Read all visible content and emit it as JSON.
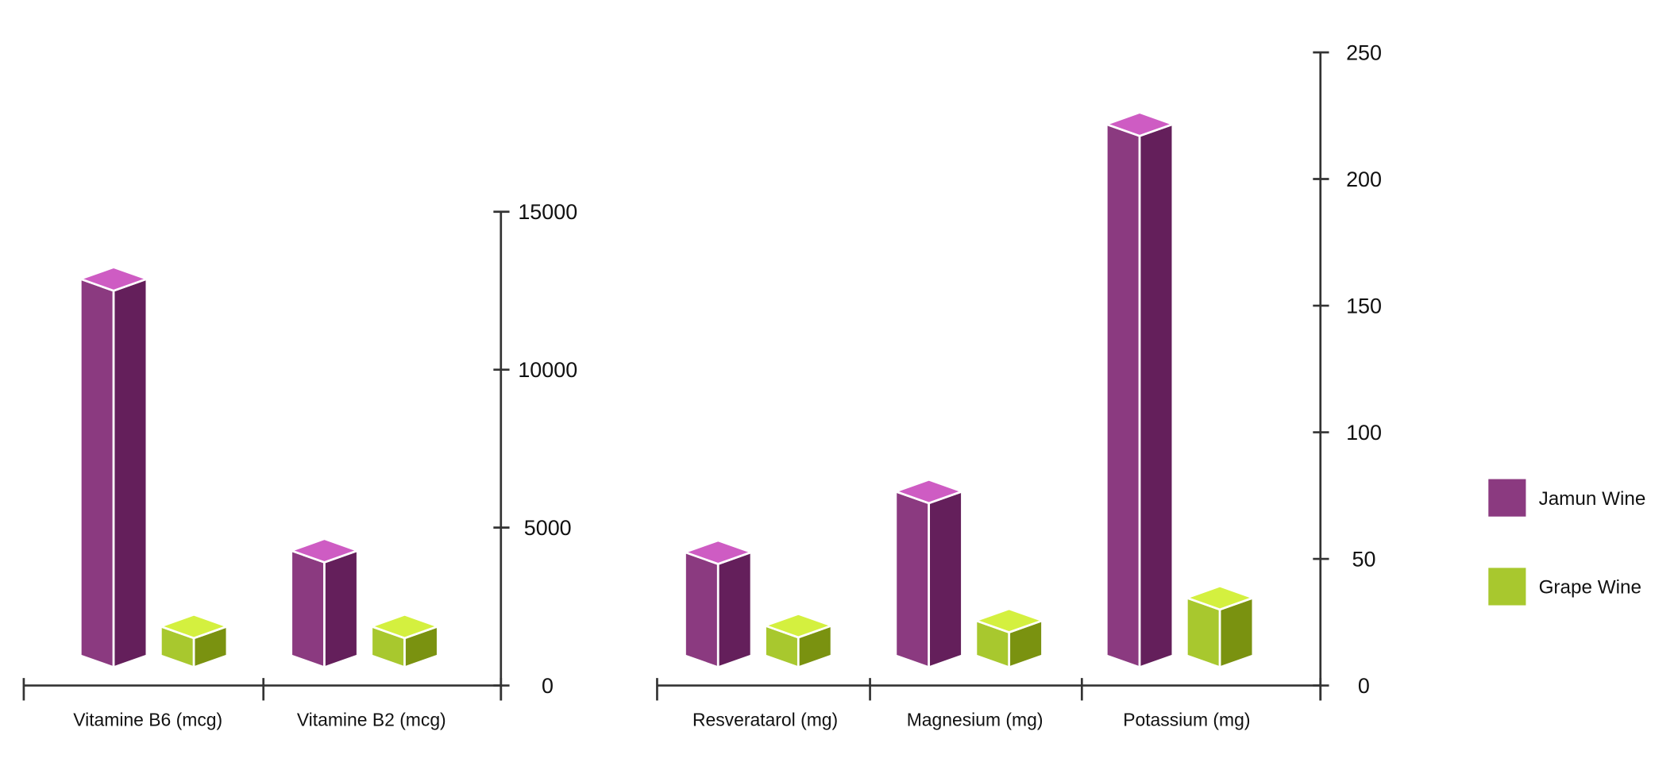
{
  "chart_data": [
    {
      "type": "bar",
      "style": "3d-isometric",
      "categories": [
        "Vitamine B6 (mcg)",
        "Vitamine B2 (mcg)"
      ],
      "series": [
        {
          "name": "Jamun Wine",
          "values": [
            12500,
            3900
          ]
        },
        {
          "name": "Grape Wine",
          "values": [
            1500,
            1500
          ]
        }
      ],
      "yticks": [
        0,
        5000,
        10000,
        15000
      ],
      "ylim": [
        0,
        15000
      ],
      "ytick_labels": [
        "0",
        "5000",
        "10000",
        "15000"
      ],
      "yaxis_position": "right",
      "grid": false
    },
    {
      "type": "bar",
      "style": "3d-isometric",
      "categories": [
        "Resveratarol (mg)",
        "Magnesium (mg)",
        "Potassium (mg)"
      ],
      "series": [
        {
          "name": "Jamun Wine",
          "values": [
            48,
            72,
            217
          ]
        },
        {
          "name": "Grape Wine",
          "values": [
            19,
            21,
            30
          ]
        }
      ],
      "yticks": [
        0,
        50,
        100,
        150,
        200,
        250
      ],
      "ylim": [
        0,
        250
      ],
      "ytick_labels": [
        "0",
        "50",
        "100",
        "150",
        "200",
        "250"
      ],
      "yaxis_position": "right",
      "grid": false
    }
  ],
  "legend": {
    "placement": "right",
    "items": [
      {
        "label": "Jamun Wine",
        "color": "#8B3A80"
      },
      {
        "label": "Grape Wine",
        "color": "#A8C82E"
      }
    ]
  },
  "colors": {
    "jamun": {
      "left": "#8B3A80",
      "right": "#641F5B",
      "top": "#CE5CC3"
    },
    "grape": {
      "left": "#A8C82E",
      "right": "#7A9210",
      "top": "#D4F03F"
    }
  }
}
